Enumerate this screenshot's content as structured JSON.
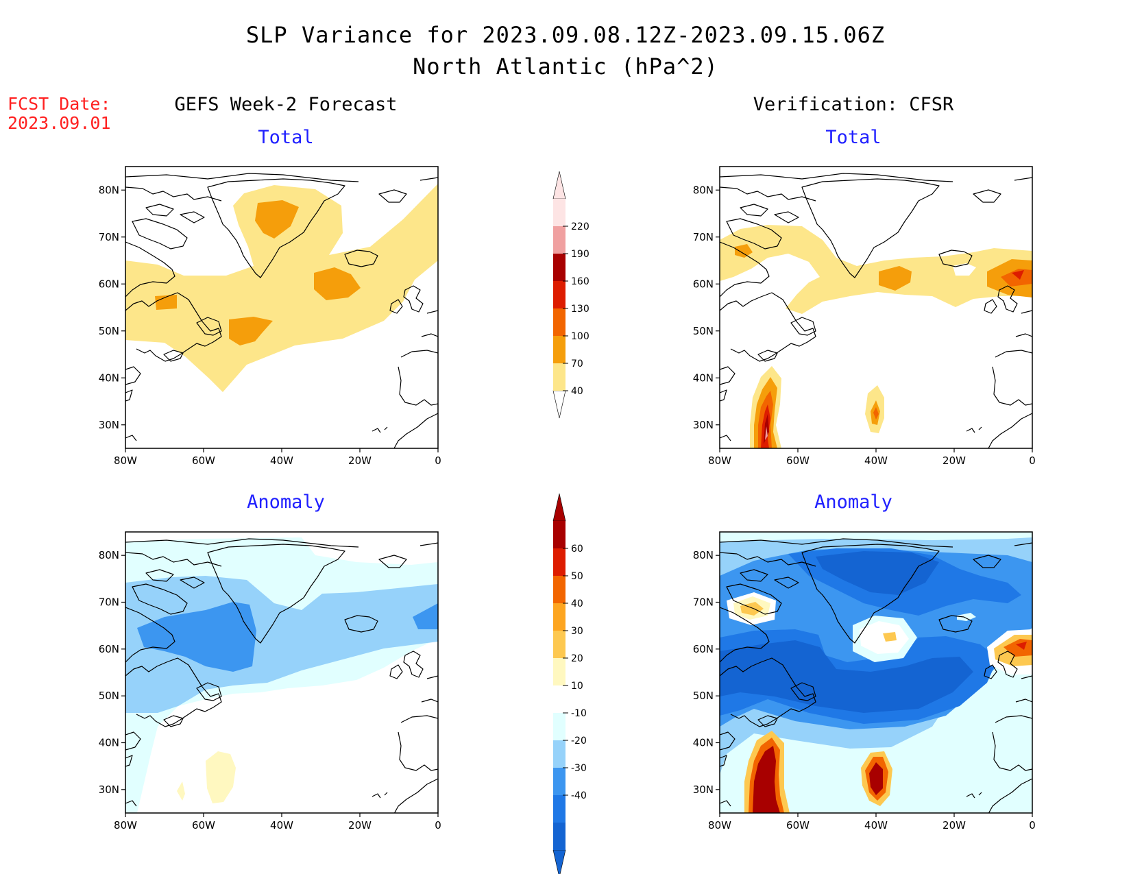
{
  "title": {
    "line1": "SLP Variance for 2023.09.08.12Z-2023.09.15.06Z",
    "line2": "North Atlantic (hPa^2)"
  },
  "forecast_date": {
    "label": "FCST Date:",
    "value": "2023.09.01"
  },
  "columns": {
    "left": "GEFS Week-2 Forecast",
    "right": "Verification: CFSR"
  },
  "panels": {
    "top_left_subtitle": "Total",
    "top_right_subtitle": "Total",
    "bottom_left_subtitle": "Anomaly",
    "bottom_right_subtitle": "Anomaly"
  },
  "axes": {
    "lat_labels": [
      "80N",
      "70N",
      "60N",
      "50N",
      "40N",
      "30N"
    ],
    "lon_labels": [
      "80W",
      "60W",
      "40W",
      "20W",
      "0"
    ],
    "lat_values": [
      80,
      70,
      60,
      50,
      40,
      30
    ],
    "lon_values": [
      -80,
      -60,
      -40,
      -20,
      0
    ],
    "lat_range": [
      25,
      85
    ],
    "lon_range": [
      -80,
      0
    ]
  },
  "colorbars": {
    "total": {
      "ticks": [
        "220",
        "190",
        "160",
        "130",
        "100",
        "70",
        "40"
      ],
      "colors_bottom_to_top": [
        "#fde68a",
        "#f59e0b",
        "#f26500",
        "#dd1c00",
        "#a80000",
        "#f0a0a0",
        "#fde4e4"
      ],
      "below_min_color": "#ffffff"
    },
    "anomaly": {
      "ticks": [
        "60",
        "50",
        "40",
        "30",
        "20",
        "10",
        "-10",
        "-20",
        "-30",
        "-40"
      ],
      "colors_bottom_to_top": [
        "#1464d2",
        "#1f78e6",
        "#3c96f0",
        "#96d2fa",
        "#e1ffff",
        "#ffffff",
        "#fff8c0",
        "#fdc850",
        "#fda520",
        "#f26500",
        "#dd1c00",
        "#a80000"
      ]
    }
  },
  "colors": {
    "yellow": "#fde68a",
    "orange": "#f59e0b",
    "dark_orange": "#f26500",
    "red": "#dd1c00",
    "dark_red": "#a80000",
    "pink": "#f0a0a0",
    "light_cyan": "#e1ffff",
    "light_blue": "#96d2fa",
    "mid_blue": "#3c96f0",
    "blue": "#1f78e6",
    "dark_blue": "#1464d2",
    "pale_yellow": "#fff8c0",
    "light_orange": "#fdc850"
  }
}
